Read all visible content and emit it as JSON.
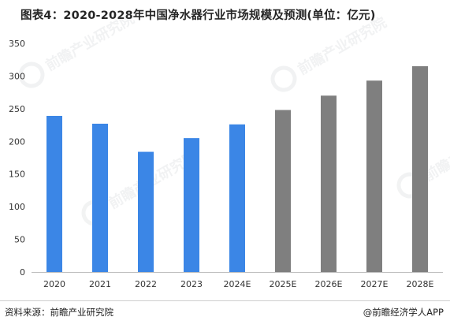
{
  "title": "图表4：2020-2028年中国净水器行业市场规模及预测(单位：亿元)",
  "footer": {
    "source": "资料来源：前瞻产业研究院",
    "credit": "@前瞻经济学人APP"
  },
  "watermark": {
    "text": "前瞻产业研究院"
  },
  "colors": {
    "actual": "#3b86e6",
    "forecast": "#7f7f7f",
    "axis_text": "#333333",
    "axis_line": "#bfbfbf"
  },
  "chart_data": {
    "type": "bar",
    "title": "图表4：2020-2028年中国净水器行业市场规模及预测(单位：亿元)",
    "xlabel": "",
    "ylabel": "",
    "categories": [
      "2020",
      "2021",
      "2022",
      "2023",
      "2024E",
      "2025E",
      "2026E",
      "2027E",
      "2028E"
    ],
    "values": [
      239,
      227,
      184,
      205,
      226,
      248,
      270,
      293,
      315
    ],
    "bar_kind": [
      "actual",
      "actual",
      "actual",
      "actual",
      "actual",
      "forecast",
      "forecast",
      "forecast",
      "forecast"
    ],
    "ylim": [
      0,
      350
    ],
    "yticks": [
      0,
      50,
      100,
      150,
      200,
      250,
      300,
      350
    ],
    "grid": false,
    "legend": "none"
  }
}
